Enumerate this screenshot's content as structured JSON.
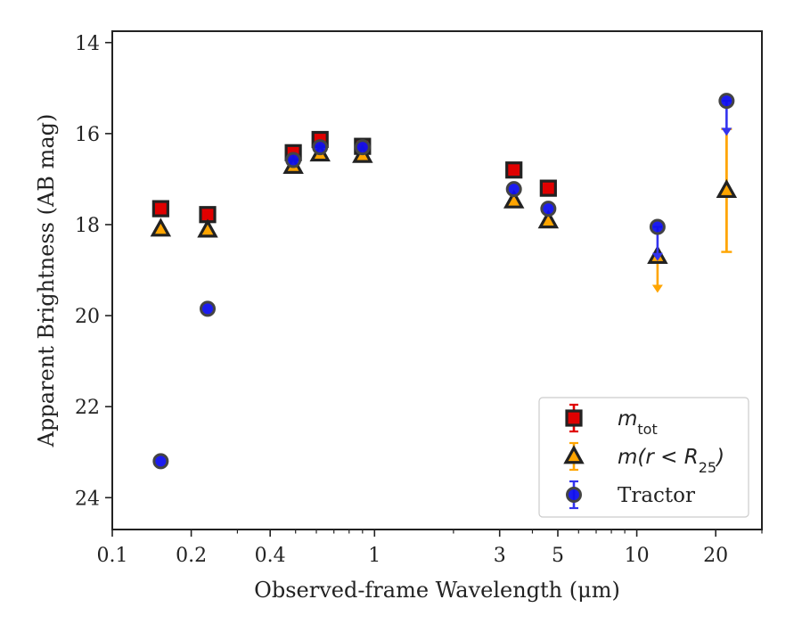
{
  "chart_data": {
    "type": "scatter",
    "title": "",
    "xlabel": "Observed-frame Wavelength (μm)",
    "ylabel": "Apparent Brightness (AB mag)",
    "x_scale": "log",
    "y_inverted": true,
    "xlim": [
      0.1,
      30
    ],
    "ylim": [
      24.7,
      13.75
    ],
    "x_ticks": [
      0.1,
      0.2,
      0.4,
      1,
      3,
      5,
      10,
      20
    ],
    "x_tick_labels": [
      "0.1",
      "0.2",
      "0.4",
      "1",
      "3",
      "5",
      "10",
      "20"
    ],
    "y_ticks": [
      14,
      16,
      18,
      20,
      22,
      24
    ],
    "y_tick_labels": [
      "14",
      "16",
      "18",
      "20",
      "22",
      "24"
    ],
    "grid": false,
    "legend_position": "lower-right",
    "series": [
      {
        "name": "m_tot",
        "legend_label": {
          "base": "m",
          "sub": "tot"
        },
        "marker": "square",
        "face_color": "#e00000",
        "edge_color": "#222222",
        "error_color": "#e00000",
        "points": [
          {
            "x": 0.153,
            "y": 17.65
          },
          {
            "x": 0.231,
            "y": 17.78
          },
          {
            "x": 0.49,
            "y": 16.42
          },
          {
            "x": 0.62,
            "y": 16.13
          },
          {
            "x": 0.9,
            "y": 16.28
          },
          {
            "x": 3.4,
            "y": 16.8
          },
          {
            "x": 4.6,
            "y": 17.2
          }
        ]
      },
      {
        "name": "m(r < R_25)",
        "legend_label": {
          "base": "m(r < R",
          "sub": "25",
          "tail": ")"
        },
        "marker": "triangle",
        "face_color": "#ffa500",
        "edge_color": "#222222",
        "error_color": "#ffa500",
        "points": [
          {
            "x": 0.153,
            "y": 18.1
          },
          {
            "x": 0.231,
            "y": 18.12
          },
          {
            "x": 0.49,
            "y": 16.72
          },
          {
            "x": 0.62,
            "y": 16.45
          },
          {
            "x": 0.9,
            "y": 16.48
          },
          {
            "x": 3.4,
            "y": 17.48
          },
          {
            "x": 4.6,
            "y": 17.92
          },
          {
            "x": 12.0,
            "y": 18.7,
            "upper_limit": true,
            "limit_to": 19.5
          },
          {
            "x": 22.0,
            "y": 17.25,
            "err_low": 15.9,
            "err_high": 18.6
          }
        ]
      },
      {
        "name": "Tractor",
        "legend_label": {
          "base": "Tractor"
        },
        "marker": "circle",
        "face_color": "#1010ee",
        "edge_color": "#444444",
        "error_color": "#3333ee",
        "points": [
          {
            "x": 0.153,
            "y": 23.2
          },
          {
            "x": 0.231,
            "y": 19.85
          },
          {
            "x": 0.49,
            "y": 16.58
          },
          {
            "x": 0.62,
            "y": 16.3
          },
          {
            "x": 0.9,
            "y": 16.3
          },
          {
            "x": 3.4,
            "y": 17.22
          },
          {
            "x": 4.6,
            "y": 17.65
          },
          {
            "x": 12.0,
            "y": 18.05,
            "upper_limit": true,
            "limit_to": 18.8
          },
          {
            "x": 22.0,
            "y": 15.28,
            "upper_limit": true,
            "limit_to": 16.05
          }
        ]
      }
    ]
  }
}
